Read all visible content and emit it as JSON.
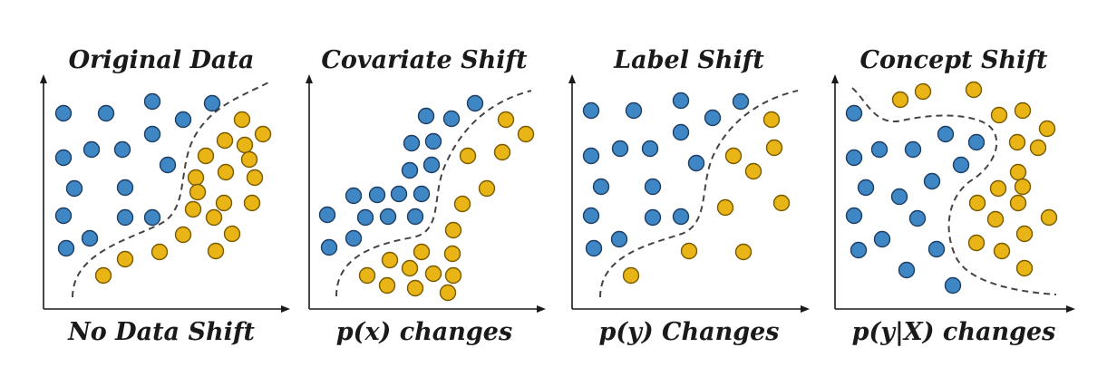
{
  "colors": {
    "class_a": "#3f86c4",
    "class_a_edge": "#1d3f66",
    "class_b": "#e8b416",
    "class_b_edge": "#7a5a00"
  },
  "panels": [
    {
      "title": "Original Data",
      "caption": "No Data Shift",
      "blue": [
        [
          70,
          125
        ],
        [
          117,
          125
        ],
        [
          168,
          112
        ],
        [
          202,
          132
        ],
        [
          234,
          114
        ],
        [
          70,
          174
        ],
        [
          101,
          165
        ],
        [
          135,
          165
        ],
        [
          168,
          148
        ],
        [
          185,
          182
        ],
        [
          82,
          208
        ],
        [
          138,
          207
        ],
        [
          70,
          238
        ],
        [
          138,
          240
        ],
        [
          168,
          240
        ],
        [
          73,
          274
        ],
        [
          99,
          263
        ]
      ],
      "yellow": [
        [
          267,
          132
        ],
        [
          290,
          148
        ],
        [
          248,
          155
        ],
        [
          270,
          160
        ],
        [
          227,
          172
        ],
        [
          249,
          190
        ],
        [
          275,
          176
        ],
        [
          216,
          196
        ],
        [
          281,
          196
        ],
        [
          218,
          212
        ],
        [
          247,
          224
        ],
        [
          278,
          224
        ],
        [
          213,
          231
        ],
        [
          236,
          240
        ],
        [
          256,
          258
        ],
        [
          202,
          259
        ],
        [
          238,
          277
        ],
        [
          176,
          278
        ],
        [
          138,
          286
        ],
        [
          114,
          304
        ]
      ]
    },
    {
      "title": "Covariate Shift",
      "caption": "p(x) changes",
      "blue": [
        [
          470,
          128
        ],
        [
          498,
          131
        ],
        [
          524,
          114
        ],
        [
          454,
          158
        ],
        [
          478,
          156
        ],
        [
          452,
          188
        ],
        [
          476,
          182
        ],
        [
          390,
          216
        ],
        [
          416,
          215
        ],
        [
          440,
          214
        ],
        [
          465,
          214
        ],
        [
          361,
          237
        ],
        [
          403,
          240
        ],
        [
          428,
          239
        ],
        [
          458,
          239
        ],
        [
          390,
          263
        ],
        [
          363,
          273
        ]
      ],
      "yellow": [
        [
          558,
          132
        ],
        [
          580,
          148
        ],
        [
          554,
          168
        ],
        [
          516,
          172
        ],
        [
          537,
          208
        ],
        [
          510,
          225
        ],
        [
          500,
          254
        ],
        [
          499,
          280
        ],
        [
          465,
          278
        ],
        [
          405,
          304
        ],
        [
          430,
          287
        ],
        [
          452,
          296
        ],
        [
          478,
          302
        ],
        [
          500,
          304
        ],
        [
          427,
          315
        ],
        [
          458,
          318
        ],
        [
          494,
          323
        ]
      ]
    },
    {
      "title": "Label Shift",
      "caption": "p(y) Changes",
      "blue": [
        [
          652,
          122
        ],
        [
          699,
          122
        ],
        [
          751,
          111
        ],
        [
          786,
          130
        ],
        [
          817,
          112
        ],
        [
          652,
          172
        ],
        [
          684,
          164
        ],
        [
          717,
          164
        ],
        [
          751,
          146
        ],
        [
          768,
          180
        ],
        [
          663,
          206
        ],
        [
          720,
          206
        ],
        [
          652,
          238
        ],
        [
          720,
          240
        ],
        [
          751,
          239
        ],
        [
          655,
          274
        ],
        [
          683,
          264
        ]
      ],
      "yellow": [
        [
          851,
          132
        ],
        [
          809,
          172
        ],
        [
          854,
          163
        ],
        [
          831,
          189
        ],
        [
          800,
          229
        ],
        [
          862,
          224
        ],
        [
          760,
          277
        ],
        [
          820,
          278
        ],
        [
          696,
          304
        ]
      ]
    },
    {
      "title": "Concept Shift",
      "caption": "p(y|X) changes",
      "blue": [
        [
          942,
          125
        ],
        [
          942,
          174
        ],
        [
          970,
          165
        ],
        [
          1007,
          165
        ],
        [
          1043,
          148
        ],
        [
          1077,
          157
        ],
        [
          1060,
          182
        ],
        [
          955,
          207
        ],
        [
          1028,
          200
        ],
        [
          992,
          217
        ],
        [
          942,
          238
        ],
        [
          1012,
          241
        ],
        [
          947,
          276
        ],
        [
          973,
          264
        ],
        [
          1033,
          275
        ],
        [
          1000,
          298
        ],
        [
          1051,
          315
        ]
      ],
      "yellow": [
        [
          993,
          110
        ],
        [
          1018,
          101
        ],
        [
          1074,
          99
        ],
        [
          1102,
          127
        ],
        [
          1128,
          122
        ],
        [
          1155,
          142
        ],
        [
          1122,
          157
        ],
        [
          1145,
          163
        ],
        [
          1123,
          190
        ],
        [
          1101,
          208
        ],
        [
          1128,
          206
        ],
        [
          1078,
          224
        ],
        [
          1123,
          224
        ],
        [
          1098,
          242
        ],
        [
          1157,
          240
        ],
        [
          1130,
          258
        ],
        [
          1077,
          268
        ],
        [
          1105,
          277
        ],
        [
          1130,
          296
        ]
      ]
    }
  ]
}
